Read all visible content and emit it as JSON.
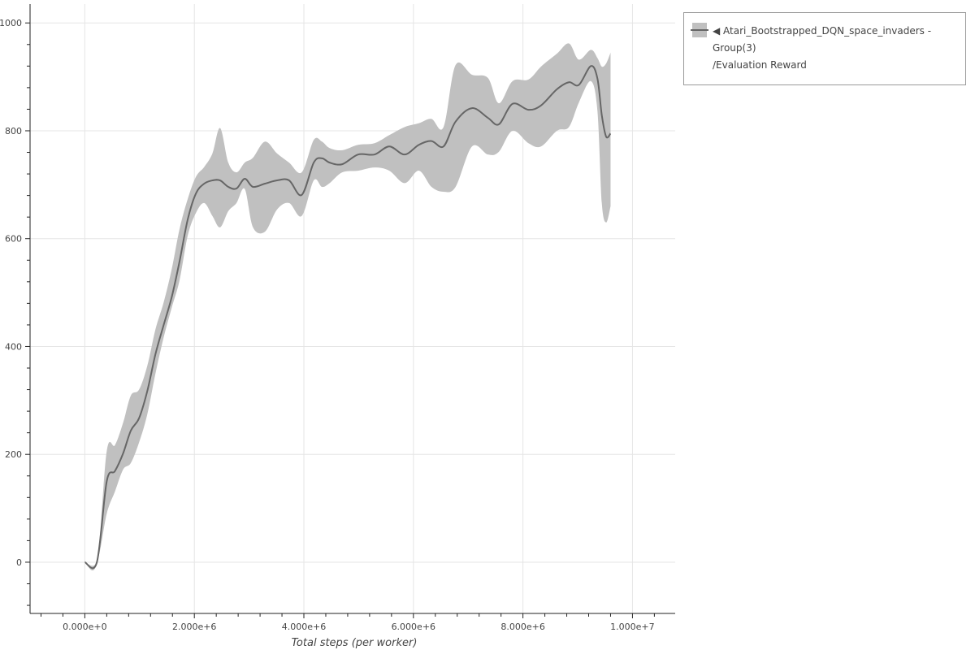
{
  "chart_data": {
    "type": "line",
    "title": "",
    "xlabel": "Total steps (per worker)",
    "ylabel": "",
    "xlim": [
      -1000000,
      10780000
    ],
    "ylim": [
      -95,
      1035
    ],
    "grid": true,
    "legend_position": "top-right (outside plot)",
    "x_ticks": [
      0,
      2000000,
      4000000,
      6000000,
      8000000,
      10000000
    ],
    "x_tick_labels": [
      "0.000e+0",
      "2.000e+6",
      "4.000e+6",
      "6.000e+6",
      "8.000e+6",
      "1.000e+7"
    ],
    "y_ticks": [
      0,
      200,
      400,
      600,
      800,
      1000
    ],
    "y_tick_labels": [
      "0",
      "200",
      "400",
      "600",
      "800",
      "1000"
    ],
    "series": [
      {
        "name": "◀ Atari_Bootstrapped_DQN_space_invaders - Group(3) /Evaluation Reward",
        "line_color": "#666666",
        "band_color": "#c0c0c0",
        "x": [
          0,
          220000,
          400000,
          550000,
          700000,
          840000,
          990000,
          1140000,
          1290000,
          1440000,
          1590000,
          1730000,
          1880000,
          2030000,
          2180000,
          2330000,
          2470000,
          2620000,
          2770000,
          2920000,
          3070000,
          3290000,
          3510000,
          3730000,
          3960000,
          4180000,
          4330000,
          4470000,
          4700000,
          4990000,
          5290000,
          5560000,
          5840000,
          6100000,
          6330000,
          6550000,
          6770000,
          7070000,
          7360000,
          7560000,
          7810000,
          8100000,
          8330000,
          8620000,
          8840000,
          9020000,
          9240000,
          9360000,
          9440000,
          9520000,
          9600000
        ],
        "mean": [
          0,
          0,
          150,
          169,
          202,
          244,
          267,
          317,
          386,
          440,
          493,
          558,
          636,
          684,
          702,
          708,
          708,
          696,
          693,
          711,
          696,
          702,
          708,
          708,
          681,
          741,
          749,
          741,
          738,
          756,
          756,
          771,
          756,
          774,
          781,
          771,
          817,
          842,
          824,
          812,
          850,
          839,
          847,
          877,
          890,
          885,
          920,
          897,
          829,
          789,
          795
        ],
        "upper": [
          0,
          0,
          206,
          217,
          259,
          309,
          320,
          364,
          432,
          482,
          545,
          618,
          674,
          715,
          733,
          758,
          805,
          741,
          723,
          741,
          750,
          780,
          758,
          741,
          723,
          783,
          780,
          768,
          764,
          774,
          777,
          792,
          807,
          814,
          822,
          807,
          922,
          904,
          898,
          851,
          892,
          895,
          919,
          943,
          962,
          932,
          950,
          935,
          919,
          925,
          945
        ],
        "lower": [
          0,
          0,
          90,
          131,
          172,
          184,
          222,
          274,
          350,
          417,
          473,
          523,
          606,
          648,
          666,
          642,
          621,
          651,
          666,
          692,
          621,
          613,
          654,
          666,
          642,
          708,
          696,
          703,
          723,
          726,
          732,
          726,
          703,
          726,
          696,
          687,
          696,
          771,
          756,
          761,
          800,
          777,
          771,
          800,
          807,
          852,
          892,
          837,
          666,
          630,
          660
        ]
      }
    ]
  },
  "legend": {
    "line1": "◀ Atari_Bootstrapped_DQN_space_invaders - Group(3)",
    "line2": "/Evaluation Reward"
  }
}
